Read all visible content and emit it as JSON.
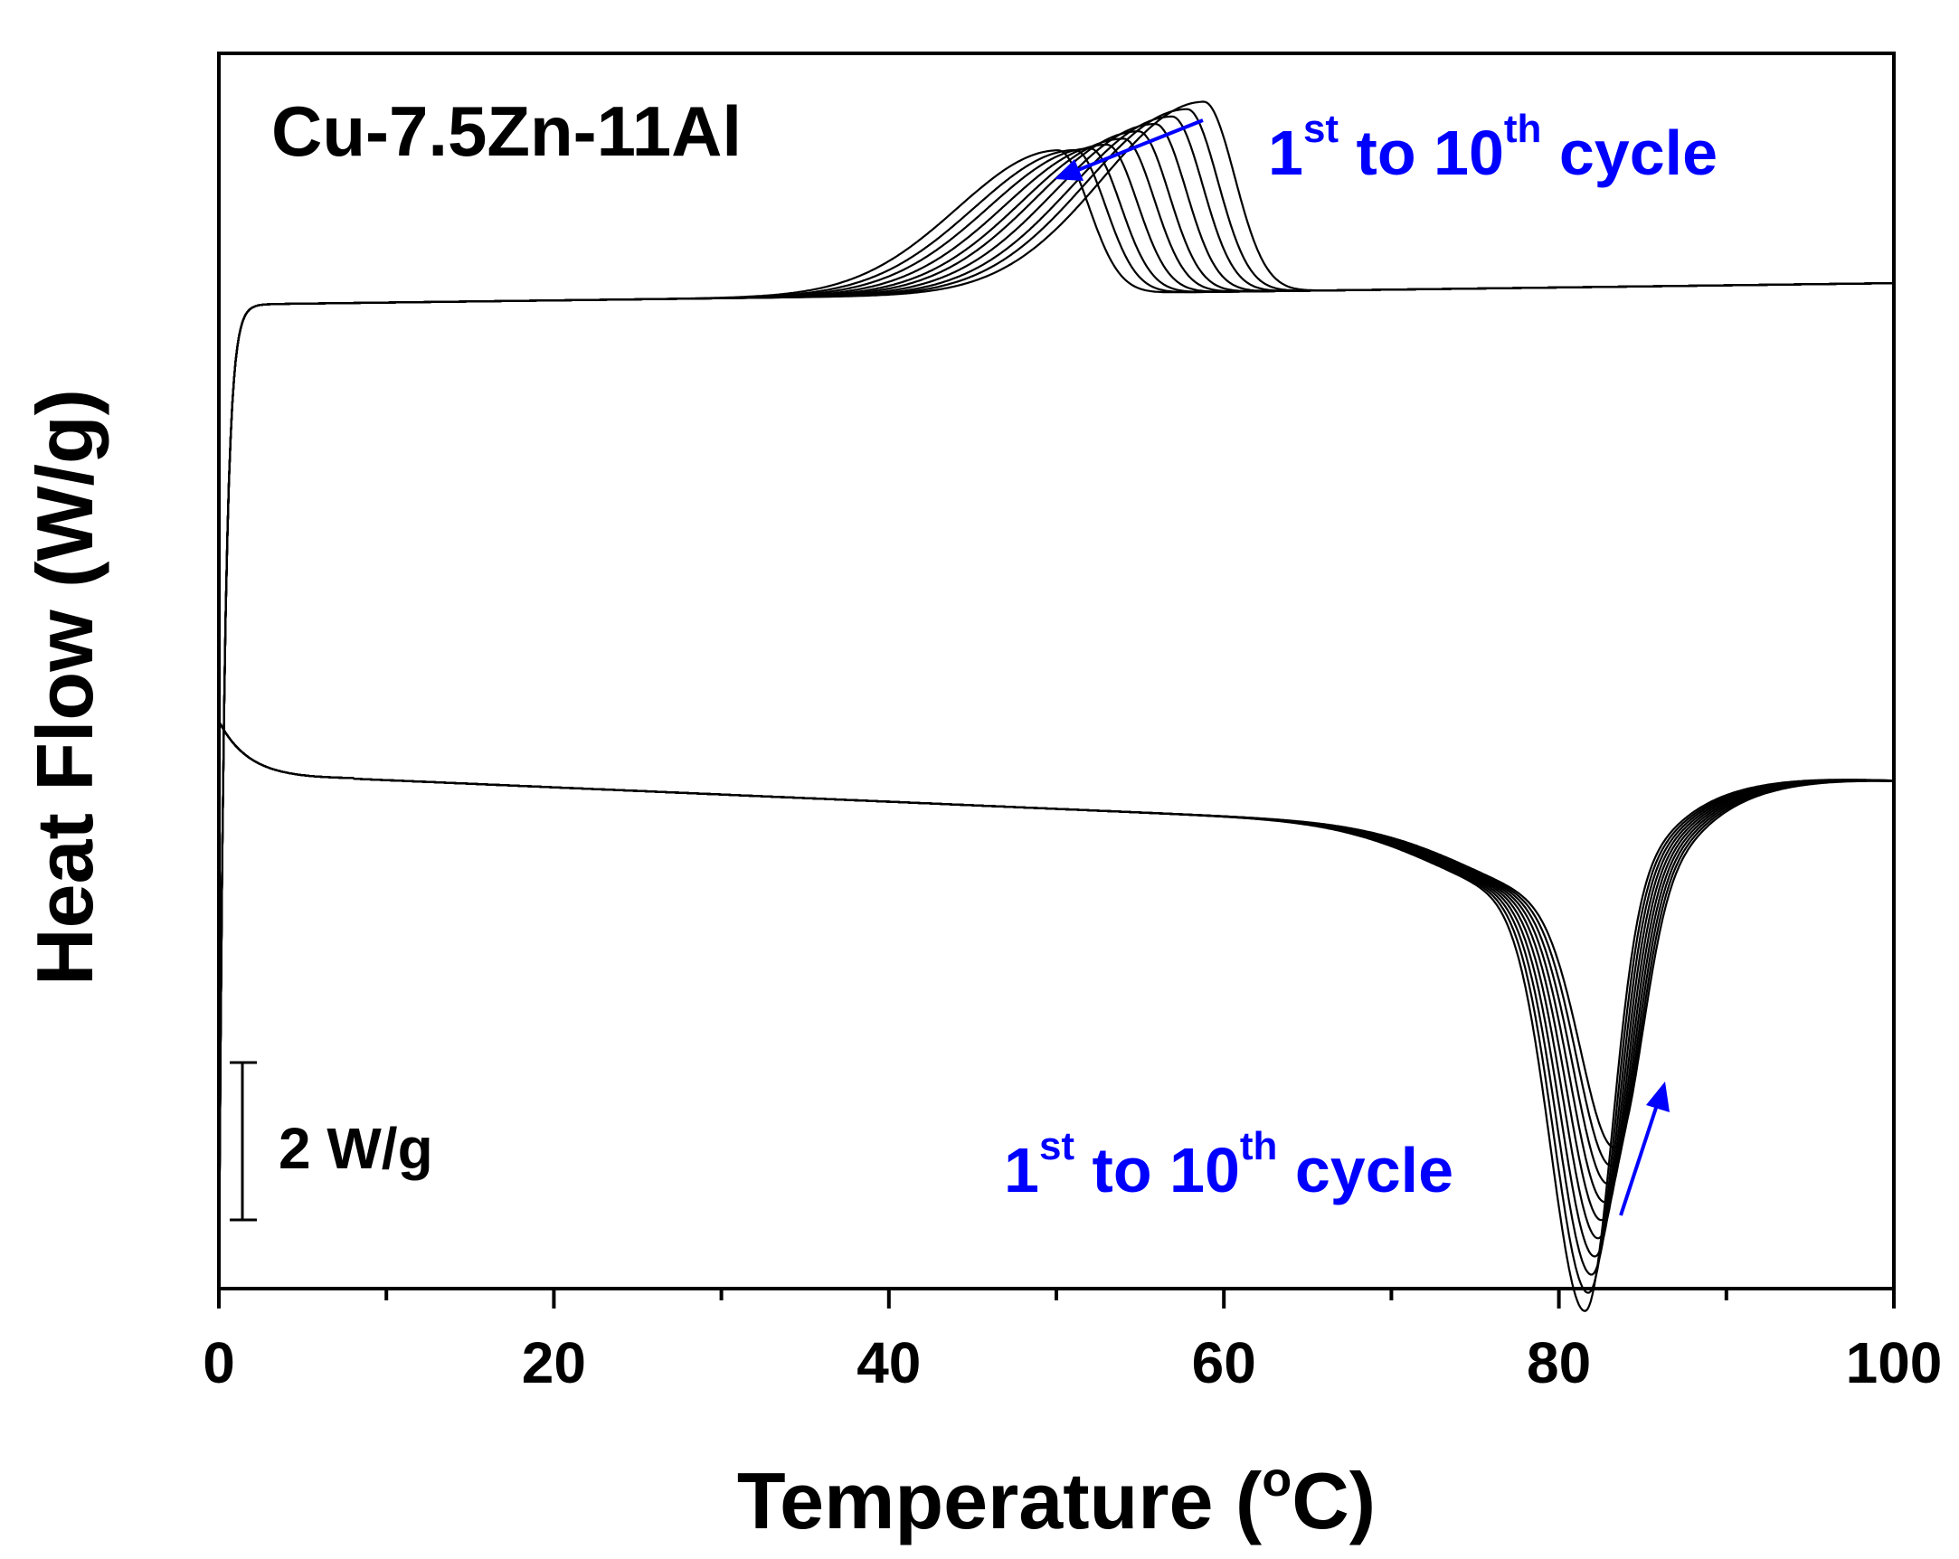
{
  "chart_data": {
    "type": "line",
    "title": "Cu-7.5Zn-11Al",
    "xlabel": "Temperature (",
    "xlabel_unit_sup": "o",
    "xlabel_unit_tail": "C)",
    "ylabel": "Heat Flow (W/g)",
    "xlim": [
      0,
      100
    ],
    "x_ticks": [
      "0",
      "20",
      "40",
      "60",
      "80",
      "100"
    ],
    "x_tick_values": [
      0,
      20,
      40,
      60,
      80,
      100
    ],
    "x_minor_tick_values": [
      10,
      30,
      50,
      70,
      90
    ],
    "y_units": "W/g",
    "ylim": [
      -13.7,
      3.5
    ],
    "grid": false,
    "legend": "none",
    "colors": {
      "line": "#000000",
      "annotation": "#0000ff",
      "frame": "#000000"
    },
    "scale_bar": {
      "label": "2 W/g",
      "value": 2
    },
    "annotations": [
      {
        "id": "cooling",
        "num": "1",
        "sup1": "st",
        "mid": " to 10",
        "sup2": "th",
        "tail": " cycle"
      },
      {
        "id": "heating",
        "num": "1",
        "sup1": "st",
        "mid": " to 10",
        "sup2": "th",
        "tail": " cycle"
      }
    ],
    "series_groups": {
      "cooling_cycles": {
        "cycles": 10,
        "baseline_start": 0.0,
        "baseline_end": 0.3,
        "peak_temperatures": [
          58.8,
          57.8,
          56.9,
          55.9,
          54.9,
          54.0,
          53.0,
          52.0,
          51.1,
          50.1
        ],
        "peak_heights": [
          2.65,
          2.55,
          2.45,
          2.35,
          2.25,
          2.15,
          2.07,
          2.02,
          2.0,
          2.0
        ]
      },
      "heating_cycles": {
        "cycles": 10,
        "start_value": -5.8,
        "baseline_end": -5.8,
        "peak_temperatures": [
          81.6,
          81.8,
          82.0,
          82.2,
          82.4,
          82.6,
          82.8,
          83.0,
          83.2,
          83.4
        ],
        "peak_depths": [
          -13.4,
          -13.1,
          -12.8,
          -12.5,
          -12.2,
          -11.9,
          -11.6,
          -11.3,
          -11.0,
          -10.7
        ]
      }
    }
  }
}
